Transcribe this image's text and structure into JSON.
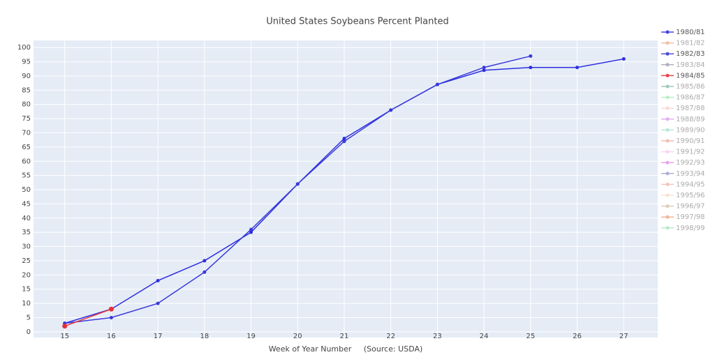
{
  "chart_data": {
    "type": "line",
    "title": "United States Soybeans Percent Planted",
    "x_label": "Week of Year Number     (Source: USDA)",
    "x": [
      15,
      16,
      17,
      18,
      19,
      20,
      21,
      22,
      23,
      24,
      25,
      26,
      27
    ],
    "xlim": [
      14.33,
      27.73
    ],
    "xticks": [
      15,
      16,
      17,
      18,
      19,
      20,
      21,
      22,
      23,
      24,
      25,
      26,
      27
    ],
    "ylim": [
      -2,
      102.5
    ],
    "yticks": [
      0,
      5,
      10,
      15,
      20,
      25,
      30,
      35,
      40,
      45,
      50,
      55,
      60,
      65,
      70,
      75,
      80,
      85,
      90,
      95,
      100
    ],
    "grid": true,
    "legend": "right",
    "series": [
      {
        "name": "1980/81",
        "color": "#2f2fe0",
        "visible": true,
        "values": [
          3,
          8,
          18,
          25,
          35,
          52,
          68,
          78,
          87,
          92,
          93,
          93,
          96
        ]
      },
      {
        "name": "1981/82",
        "color": "#e0703a",
        "visible": false
      },
      {
        "name": "1982/83",
        "color": "#3a3ad8",
        "visible": true,
        "values": [
          3,
          5,
          10,
          21,
          36,
          52,
          67,
          78,
          87,
          93,
          97,
          null,
          null
        ]
      },
      {
        "name": "1983/84",
        "color": "#50507a",
        "visible": false
      },
      {
        "name": "1984/85",
        "color": "#e8303a",
        "visible": true,
        "values": [
          2,
          8,
          null,
          null,
          null,
          null,
          null,
          null,
          null,
          null,
          null,
          null,
          null
        ]
      },
      {
        "name": "1985/86",
        "color": "#2a8a6a",
        "visible": false
      },
      {
        "name": "1986/87",
        "color": "#60e080",
        "visible": false
      },
      {
        "name": "1987/88",
        "color": "#f0b0a0",
        "visible": false
      },
      {
        "name": "1988/89",
        "color": "#c050e0",
        "visible": false
      },
      {
        "name": "1989/90",
        "color": "#60c8b0",
        "visible": false
      },
      {
        "name": "1990/91",
        "color": "#e07050",
        "visible": false
      },
      {
        "name": "1991/92",
        "color": "#f0a0e0",
        "visible": false
      },
      {
        "name": "1992/93",
        "color": "#d030d0",
        "visible": false
      },
      {
        "name": "1993/94",
        "color": "#5050a0",
        "visible": false
      },
      {
        "name": "1994/95",
        "color": "#e08070",
        "visible": false
      },
      {
        "name": "1995/96",
        "color": "#f0c0a0",
        "visible": false
      },
      {
        "name": "1996/97",
        "color": "#c09060",
        "visible": false
      },
      {
        "name": "1997/98",
        "color": "#e06020",
        "visible": false
      },
      {
        "name": "1998/99",
        "color": "#60d090",
        "visible": false
      }
    ]
  }
}
